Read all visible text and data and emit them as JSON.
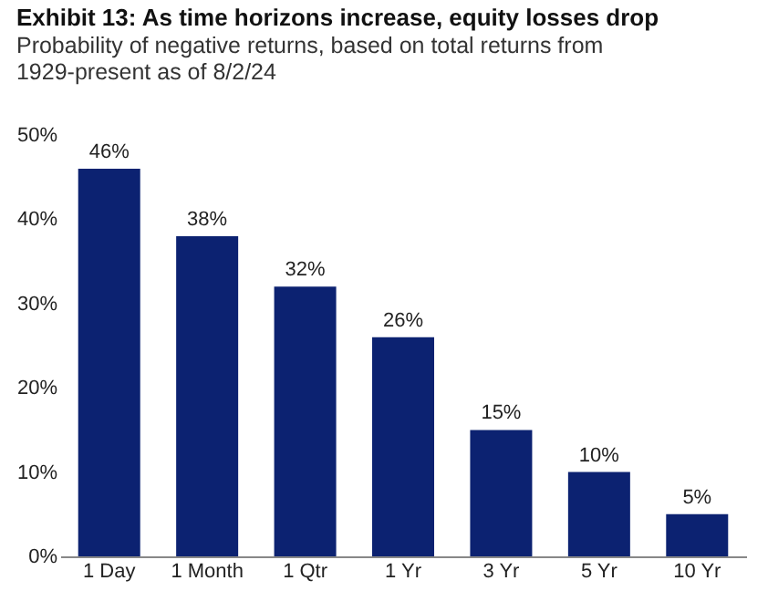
{
  "chart_data": {
    "type": "bar",
    "title": "Exhibit 13: As time horizons increase, equity losses drop",
    "subtitle": "Probability of negative returns, based on total returns from 1929-present as of 8/2/24",
    "categories": [
      "1 Day",
      "1 Month",
      "1 Qtr",
      "1 Yr",
      "3 Yr",
      "5 Yr",
      "10 Yr"
    ],
    "values": [
      46,
      38,
      32,
      26,
      15,
      10,
      5
    ],
    "value_labels": [
      "46%",
      "38%",
      "32%",
      "26%",
      "15%",
      "10%",
      "5%"
    ],
    "color": "#0c2271",
    "ylim": [
      0,
      50
    ],
    "yticks": [
      {
        "value": 0,
        "label": "0%"
      },
      {
        "value": 10,
        "label": "10%"
      },
      {
        "value": 20,
        "label": "20%"
      },
      {
        "value": 30,
        "label": "30%"
      },
      {
        "value": 40,
        "label": "40%"
      },
      {
        "value": 50,
        "label": "50%"
      }
    ],
    "grid": false
  }
}
